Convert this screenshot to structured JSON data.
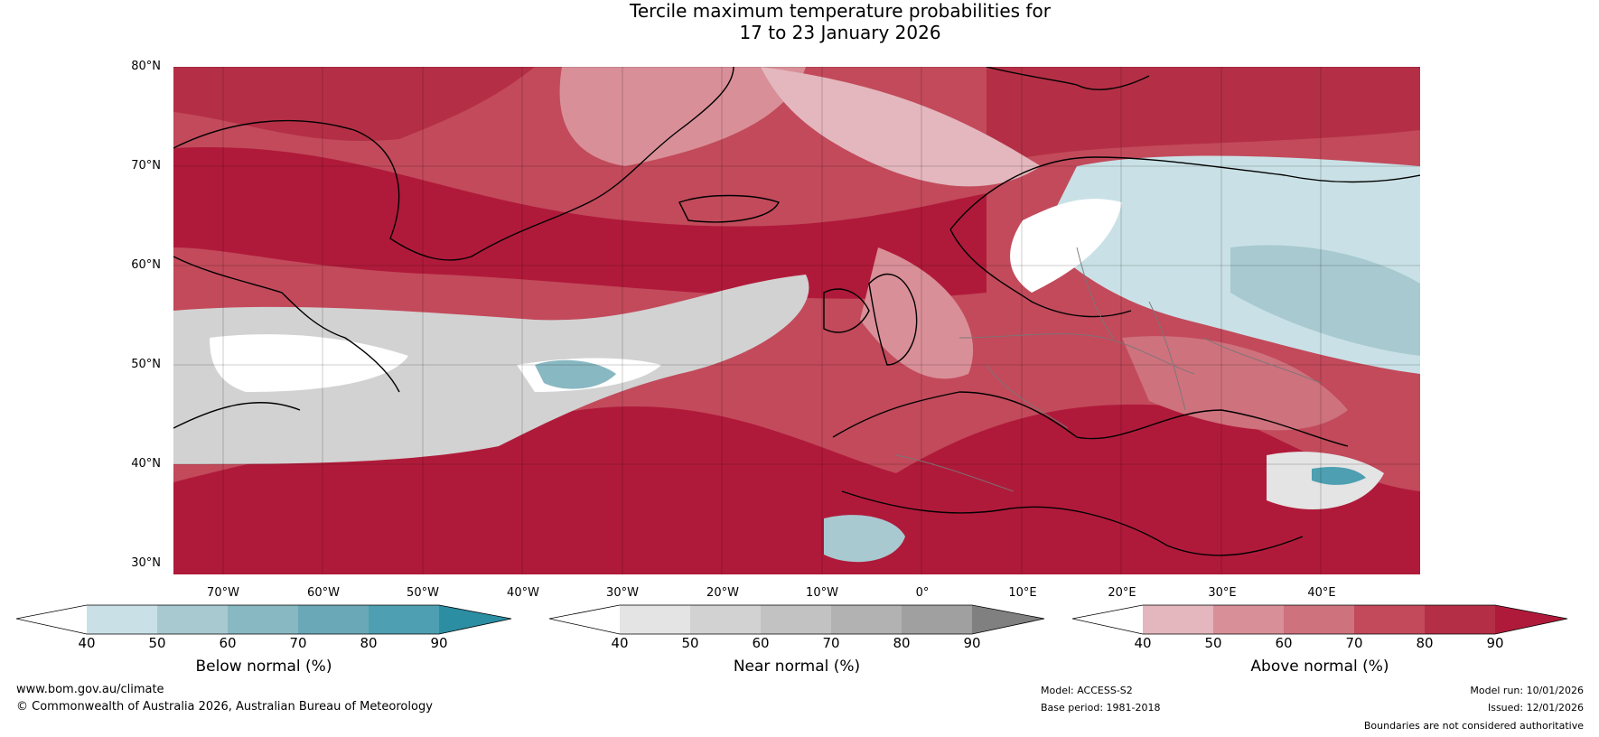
{
  "title": {
    "line1": "Tercile maximum temperature probabilities for",
    "line2": "17 to 23 January 2026"
  },
  "map": {
    "lat_labels": [
      "80°N",
      "70°N",
      "60°N",
      "50°N",
      "40°N",
      "30°N"
    ],
    "lon_labels": [
      "70°W",
      "60°W",
      "50°W",
      "40°W",
      "30°W",
      "20°W",
      "10°W",
      "0°",
      "10°E",
      "20°E",
      "30°E",
      "40°E"
    ],
    "lat_range": [
      30,
      80
    ],
    "lon_range": [
      -76,
      49
    ]
  },
  "colorbars": [
    {
      "name": "below",
      "label": "Below normal (%)",
      "ticks": [
        "40",
        "50",
        "60",
        "70",
        "80",
        "90"
      ],
      "colors": [
        "#ffffff",
        "#c9e1e6",
        "#a8c9d0",
        "#88b8c2",
        "#6aa8b8",
        "#4d9fb1",
        "#2b8ea3"
      ]
    },
    {
      "name": "near",
      "label": "Near normal (%)",
      "ticks": [
        "40",
        "50",
        "60",
        "70",
        "80",
        "90"
      ],
      "colors": [
        "#ffffff",
        "#e4e4e4",
        "#d2d2d2",
        "#c2c2c2",
        "#b2b2b2",
        "#a0a0a0",
        "#808080"
      ]
    },
    {
      "name": "above",
      "label": "Above normal (%)",
      "ticks": [
        "40",
        "50",
        "60",
        "70",
        "80",
        "90"
      ],
      "colors": [
        "#ffffff",
        "#e3b7bd",
        "#d98f98",
        "#ce727d",
        "#c24a5b",
        "#b42f45",
        "#b01a3a"
      ]
    }
  ],
  "footer": {
    "website": "www.bom.gov.au/climate",
    "copyright": "© Commonwealth of Australia 2026, Australian Bureau of Meteorology",
    "model": "Model: ACCESS-S2",
    "base_period": "Base period: 1981-2018",
    "model_run": "Model run: 10/01/2026",
    "issued": "Issued: 12/01/2026",
    "disclaimer": "Boundaries are not considered authoritative"
  }
}
